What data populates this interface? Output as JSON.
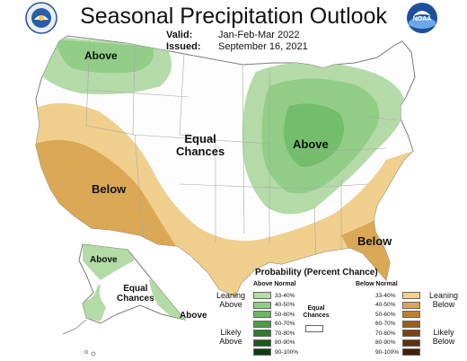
{
  "header": {
    "title": "Seasonal Precipitation Outlook",
    "valid_label": "Valid:",
    "valid_value": "Jan-Feb-Mar 2022",
    "issued_label": "Issued:",
    "issued_value": "September 16, 2021"
  },
  "logos": {
    "left": "noaa-cpc-seal-icon",
    "right": "noaa-logo-icon",
    "right_text": "NOAA"
  },
  "map": {
    "labels": {
      "pnw": "Above",
      "equal_line1": "Equal",
      "equal_line2": "Chances",
      "midwest": "Above",
      "southwest": "Below",
      "southeast": "Below",
      "alaska_north": "Above",
      "alaska_equal_line1": "Equal",
      "alaska_equal_line2": "Chances",
      "alaska_south": "Above"
    },
    "colors": {
      "above_33_40": "#b3dba6",
      "above_40_50": "#8fcd84",
      "above_50_60": "#6bb862",
      "below_33_40": "#f2cf8a",
      "below_40_50": "#dba64f",
      "land": "#ffffff",
      "boundary": "#9a9a9a"
    }
  },
  "legend": {
    "title": "Probability (Percent Chance)",
    "above_header": "Above Normal",
    "below_header": "Below Normal",
    "equal_header_1": "Equal",
    "equal_header_2": "Chances",
    "leaning_above_1": "Leaning",
    "leaning_above_2": "Above",
    "likely_above_1": "Likely",
    "likely_above_2": "Above",
    "leaning_below_1": "Leaning",
    "leaning_below_2": "Below",
    "likely_below_1": "Likely",
    "likely_below_2": "Below",
    "ranges": [
      "33-40%",
      "40-50%",
      "50-60%",
      "60-70%",
      "70-80%",
      "80-90%",
      "90-100%"
    ],
    "above_colors": [
      "#b3dba6",
      "#8fcd84",
      "#6bb862",
      "#4a9c45",
      "#2f7a2c",
      "#1d5a1c",
      "#0f3d0f"
    ],
    "below_colors": [
      "#f2cf8a",
      "#dba64f",
      "#c07f2a",
      "#9a5d1b",
      "#7a4213",
      "#5e2f0d",
      "#402008"
    ]
  }
}
